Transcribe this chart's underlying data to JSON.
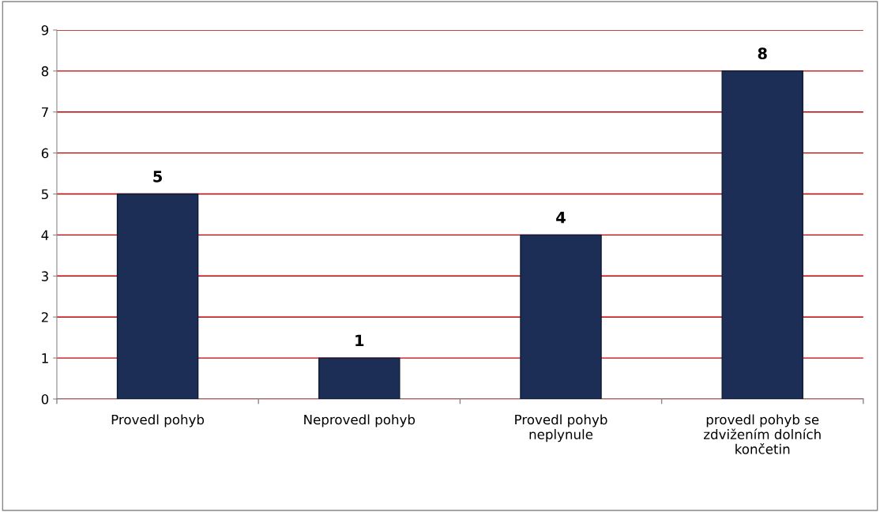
{
  "chart_data": {
    "type": "bar",
    "categories": [
      "Provedl pohyb",
      "Neprovedl pohyb",
      "Provedl pohyb\nneplynule",
      "provedl pohyb se\nzdvižením dolních\nkončetin"
    ],
    "values": [
      5,
      1,
      4,
      8
    ],
    "color": "#1c2e55",
    "ylim": [
      0,
      9
    ],
    "yticks": [
      0,
      1,
      2,
      3,
      4,
      5,
      6,
      7,
      8,
      9
    ],
    "grid": "y",
    "data_labels": true
  }
}
